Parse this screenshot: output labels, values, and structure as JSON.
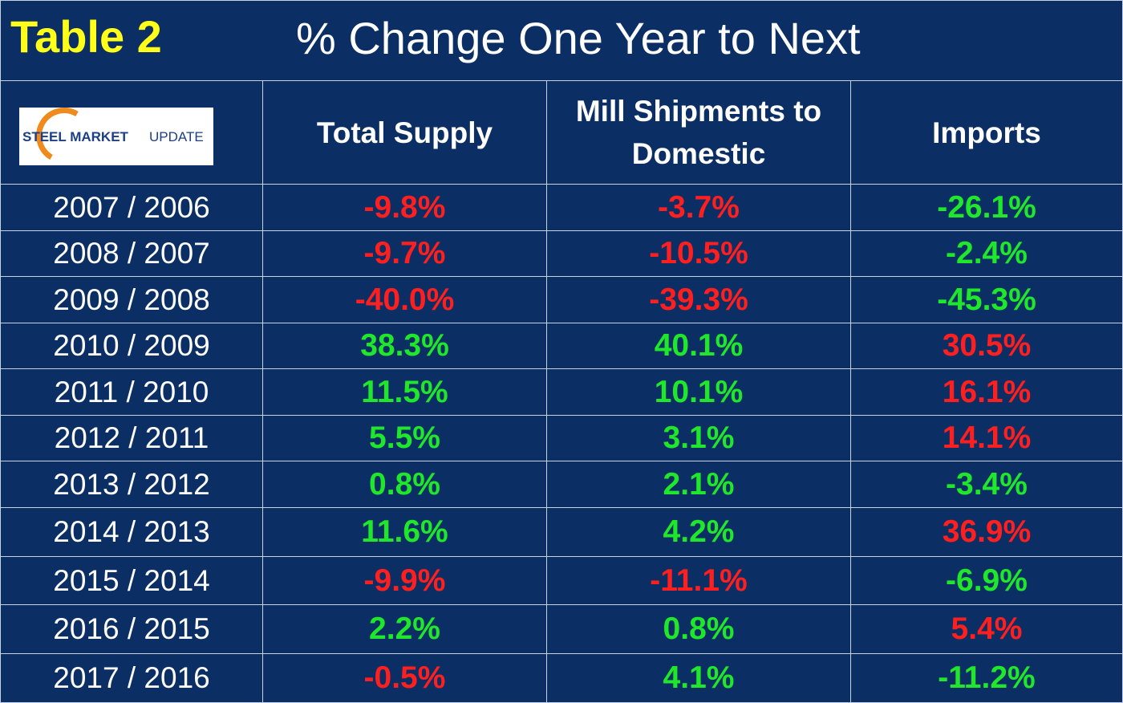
{
  "title": {
    "label": "Table 2",
    "text": "% Change One Year to Next"
  },
  "logo": {
    "bold": "STEEL MARKET",
    "light": "UPDATE"
  },
  "table": {
    "headers": [
      "Total Supply",
      "Mill Shipments to Domestic",
      "Imports"
    ],
    "rows": [
      {
        "label": "2007 / 2006",
        "cells": [
          {
            "text": "-9.8%",
            "color": "#ff1f1f"
          },
          {
            "text": "-3.7%",
            "color": "#ff1f1f"
          },
          {
            "text": "-26.1%",
            "color": "#1fe82a"
          }
        ]
      },
      {
        "label": "2008 / 2007",
        "cells": [
          {
            "text": "-9.7%",
            "color": "#ff1f1f"
          },
          {
            "text": "-10.5%",
            "color": "#ff1f1f"
          },
          {
            "text": "-2.4%",
            "color": "#1fe82a"
          }
        ]
      },
      {
        "label": "2009 / 2008",
        "cells": [
          {
            "text": "-40.0%",
            "color": "#ff1f1f"
          },
          {
            "text": "-39.3%",
            "color": "#ff1f1f"
          },
          {
            "text": "-45.3%",
            "color": "#1fe82a"
          }
        ]
      },
      {
        "label": "2010 / 2009",
        "cells": [
          {
            "text": "38.3%",
            "color": "#1fe82a"
          },
          {
            "text": "40.1%",
            "color": "#1fe82a"
          },
          {
            "text": "30.5%",
            "color": "#ff1f1f"
          }
        ]
      },
      {
        "label": "2011 / 2010",
        "cells": [
          {
            "text": "11.5%",
            "color": "#1fe82a"
          },
          {
            "text": "10.1%",
            "color": "#1fe82a"
          },
          {
            "text": "16.1%",
            "color": "#ff1f1f"
          }
        ]
      },
      {
        "label": "2012 / 2011",
        "cells": [
          {
            "text": "5.5%",
            "color": "#1fe82a"
          },
          {
            "text": "3.1%",
            "color": "#1fe82a"
          },
          {
            "text": "14.1%",
            "color": "#ff1f1f"
          }
        ]
      },
      {
        "label": "2013 / 2012",
        "cells": [
          {
            "text": "0.8%",
            "color": "#1fe82a"
          },
          {
            "text": "2.1%",
            "color": "#1fe82a"
          },
          {
            "text": "-3.4%",
            "color": "#1fe82a"
          }
        ]
      },
      {
        "label": "2014 / 2013",
        "cells": [
          {
            "text": "11.6%",
            "color": "#1fe82a"
          },
          {
            "text": "4.2%",
            "color": "#1fe82a"
          },
          {
            "text": "36.9%",
            "color": "#ff1f1f"
          }
        ]
      },
      {
        "label": "2015 / 2014",
        "cells": [
          {
            "text": "-9.9%",
            "color": "#ff1f1f"
          },
          {
            "text": "-11.1%",
            "color": "#ff1f1f"
          },
          {
            "text": "-6.9%",
            "color": "#1fe82a"
          }
        ]
      },
      {
        "label": "2016 / 2015",
        "cells": [
          {
            "text": "2.2%",
            "color": "#1fe82a"
          },
          {
            "text": "0.8%",
            "color": "#1fe82a"
          },
          {
            "text": "5.4%",
            "color": "#ff1f1f"
          }
        ]
      },
      {
        "label": "2017 / 2016",
        "cells": [
          {
            "text": "-0.5%",
            "color": "#ff1f1f"
          },
          {
            "text": "4.1%",
            "color": "#1fe82a"
          },
          {
            "text": "-11.2%",
            "color": "#1fe82a"
          }
        ]
      }
    ]
  }
}
